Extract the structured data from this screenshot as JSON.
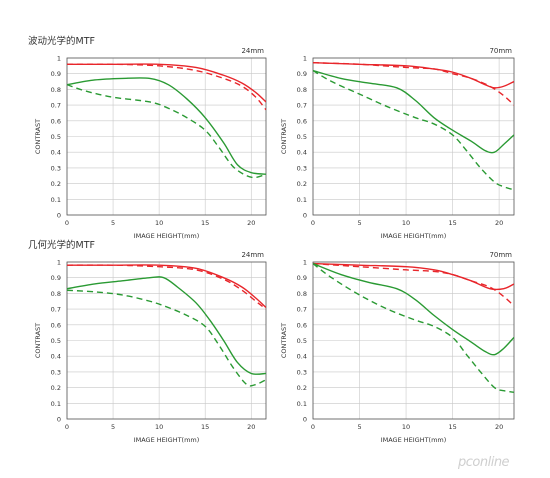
{
  "sections": [
    {
      "title": "波动光学的MTF"
    },
    {
      "title": "几何光学的MTF"
    }
  ],
  "colors": {
    "red": "#e8262b",
    "green": "#2a9a33",
    "axis": "#555555",
    "grid": "#c8c8c8",
    "text": "#333333"
  },
  "watermark": {
    "text": "pconline"
  },
  "chart_data": [
    {
      "type": "line",
      "title": "24mm",
      "xlabel": "IMAGE HEIGHT(mm)",
      "ylabel": "CONTRAST",
      "xlim": [
        0,
        21.6
      ],
      "ylim": [
        0,
        1
      ],
      "xticks": [
        0,
        5,
        10,
        15,
        20
      ],
      "yticks": [
        0,
        0.1,
        0.2,
        0.3,
        0.4,
        0.5,
        0.6,
        0.7,
        0.8,
        0.9,
        1
      ],
      "ytick_labels": [
        "0",
        "0.1",
        "0.2",
        "0.3",
        "0.4",
        "0.5",
        "0.6",
        "0.7",
        "0.8",
        "0.9",
        "1"
      ],
      "grid": true,
      "series": [
        {
          "color": "#e8262b",
          "dash": false,
          "x": [
            0,
            5,
            10,
            14,
            17,
            19,
            20.5,
            21.6
          ],
          "y": [
            0.96,
            0.96,
            0.96,
            0.94,
            0.89,
            0.84,
            0.78,
            0.72
          ]
        },
        {
          "color": "#e8262b",
          "dash": true,
          "x": [
            0,
            5,
            10,
            14,
            17,
            19,
            20.5,
            21.6
          ],
          "y": [
            0.96,
            0.96,
            0.95,
            0.92,
            0.87,
            0.82,
            0.75,
            0.67
          ]
        },
        {
          "color": "#2a9a33",
          "dash": false,
          "x": [
            0,
            3,
            6,
            9,
            11,
            13,
            15,
            17,
            18.5,
            20,
            21.6
          ],
          "y": [
            0.83,
            0.86,
            0.87,
            0.87,
            0.83,
            0.74,
            0.62,
            0.46,
            0.32,
            0.27,
            0.26
          ]
        },
        {
          "color": "#2a9a33",
          "dash": true,
          "x": [
            0,
            2,
            5,
            9,
            11,
            13,
            15,
            16.5,
            18,
            19.5,
            20.5,
            21.6
          ],
          "y": [
            0.83,
            0.79,
            0.75,
            0.72,
            0.68,
            0.62,
            0.54,
            0.43,
            0.31,
            0.25,
            0.24,
            0.26
          ]
        }
      ]
    },
    {
      "type": "line",
      "title": "70mm",
      "xlabel": "IMAGE HEIGHT(mm)",
      "ylabel": "CONTRAST",
      "xlim": [
        0,
        21.6
      ],
      "ylim": [
        0,
        1
      ],
      "xticks": [
        0,
        5,
        10,
        15,
        20
      ],
      "yticks": [
        0,
        0.1,
        0.2,
        0.3,
        0.4,
        0.5,
        0.6,
        0.7,
        0.8,
        0.9,
        1
      ],
      "ytick_labels": [
        "0",
        "0.1",
        "0.2",
        "0.3",
        "0.4",
        "0.5",
        "0.6",
        "0.7",
        "0.8",
        "0.9",
        "1"
      ],
      "grid": true,
      "series": [
        {
          "color": "#e8262b",
          "dash": false,
          "x": [
            0,
            5,
            10,
            13,
            15,
            17,
            18.5,
            19.5,
            20.5,
            21.6
          ],
          "y": [
            0.97,
            0.96,
            0.95,
            0.93,
            0.91,
            0.87,
            0.83,
            0.81,
            0.82,
            0.85
          ]
        },
        {
          "color": "#e8262b",
          "dash": true,
          "x": [
            0,
            5,
            10,
            13,
            15,
            17,
            19,
            20.5,
            21.6
          ],
          "y": [
            0.97,
            0.96,
            0.94,
            0.93,
            0.9,
            0.87,
            0.82,
            0.76,
            0.7
          ]
        },
        {
          "color": "#2a9a33",
          "dash": false,
          "x": [
            0,
            3,
            6,
            9,
            11,
            13,
            15,
            17,
            18.5,
            19.5,
            20.5,
            21.6
          ],
          "y": [
            0.92,
            0.87,
            0.84,
            0.81,
            0.73,
            0.62,
            0.54,
            0.47,
            0.41,
            0.4,
            0.45,
            0.51
          ]
        },
        {
          "color": "#2a9a33",
          "dash": true,
          "x": [
            0,
            2,
            5,
            8,
            11,
            13,
            15,
            16.5,
            18,
            19.5,
            20.5,
            21.6
          ],
          "y": [
            0.92,
            0.85,
            0.77,
            0.69,
            0.62,
            0.58,
            0.51,
            0.41,
            0.3,
            0.21,
            0.18,
            0.16
          ]
        }
      ]
    },
    {
      "type": "line",
      "title": "24mm",
      "xlabel": "IMAGE HEIGHT(mm)",
      "ylabel": "CONTRAST",
      "xlim": [
        0,
        21.6
      ],
      "ylim": [
        0,
        1
      ],
      "xticks": [
        0,
        5,
        10,
        15,
        20
      ],
      "yticks": [
        0,
        0.1,
        0.2,
        0.3,
        0.4,
        0.5,
        0.6,
        0.7,
        0.8,
        0.9,
        1
      ],
      "ytick_labels": [
        "0",
        "0.1",
        "0.2",
        "0.3",
        "0.4",
        "0.5",
        "0.6",
        "0.7",
        "0.8",
        "0.9",
        "1"
      ],
      "grid": true,
      "series": [
        {
          "color": "#e8262b",
          "dash": false,
          "x": [
            0,
            5,
            10,
            14,
            17,
            19,
            20.5,
            21.6
          ],
          "y": [
            0.98,
            0.98,
            0.98,
            0.96,
            0.9,
            0.84,
            0.77,
            0.71
          ]
        },
        {
          "color": "#e8262b",
          "dash": true,
          "x": [
            0,
            5,
            10,
            14,
            17,
            19,
            20.5,
            21.6
          ],
          "y": [
            0.98,
            0.98,
            0.97,
            0.95,
            0.89,
            0.82,
            0.75,
            0.7
          ]
        },
        {
          "color": "#2a9a33",
          "dash": false,
          "x": [
            0,
            3,
            6,
            9,
            10.5,
            12,
            14,
            15.5,
            17,
            18.5,
            20,
            21.6
          ],
          "y": [
            0.83,
            0.86,
            0.88,
            0.9,
            0.9,
            0.84,
            0.74,
            0.63,
            0.5,
            0.36,
            0.29,
            0.29
          ]
        },
        {
          "color": "#2a9a33",
          "dash": true,
          "x": [
            0,
            3,
            6,
            9,
            11,
            13,
            15,
            16.5,
            18,
            19.5,
            20.5,
            21.6
          ],
          "y": [
            0.82,
            0.81,
            0.79,
            0.75,
            0.71,
            0.66,
            0.59,
            0.47,
            0.33,
            0.22,
            0.22,
            0.25
          ]
        }
      ]
    },
    {
      "type": "line",
      "title": "70mm",
      "xlabel": "IMAGE HEIGHT(mm)",
      "ylabel": "CONTRAST",
      "xlim": [
        0,
        21.6
      ],
      "ylim": [
        0,
        1
      ],
      "xticks": [
        0,
        5,
        10,
        15,
        20
      ],
      "yticks": [
        0,
        0.1,
        0.2,
        0.3,
        0.4,
        0.5,
        0.6,
        0.7,
        0.8,
        0.9,
        1
      ],
      "ytick_labels": [
        "0",
        "0.1",
        "0.2",
        "0.3",
        "0.4",
        "0.5",
        "0.6",
        "0.7",
        "0.8",
        "0.9",
        "1"
      ],
      "grid": true,
      "series": [
        {
          "color": "#e8262b",
          "dash": false,
          "x": [
            0,
            5,
            10,
            13,
            15,
            17,
            19,
            20.5,
            21.6
          ],
          "y": [
            0.99,
            0.98,
            0.97,
            0.95,
            0.92,
            0.88,
            0.83,
            0.83,
            0.86
          ]
        },
        {
          "color": "#e8262b",
          "dash": true,
          "x": [
            0,
            5,
            10,
            13,
            15,
            17,
            19,
            20.5,
            21.6
          ],
          "y": [
            0.99,
            0.97,
            0.95,
            0.94,
            0.92,
            0.88,
            0.84,
            0.78,
            0.72
          ]
        },
        {
          "color": "#2a9a33",
          "dash": false,
          "x": [
            0,
            3,
            6,
            9,
            11,
            13,
            15,
            17,
            18.5,
            19.5,
            20.5,
            21.6
          ],
          "y": [
            0.99,
            0.92,
            0.87,
            0.83,
            0.76,
            0.66,
            0.57,
            0.49,
            0.43,
            0.41,
            0.45,
            0.52
          ]
        },
        {
          "color": "#2a9a33",
          "dash": true,
          "x": [
            0,
            2,
            5,
            8,
            11,
            13,
            15,
            16.5,
            18,
            19.5,
            20.5,
            21.6
          ],
          "y": [
            0.99,
            0.9,
            0.79,
            0.7,
            0.63,
            0.59,
            0.52,
            0.41,
            0.3,
            0.2,
            0.18,
            0.17
          ]
        }
      ]
    }
  ]
}
